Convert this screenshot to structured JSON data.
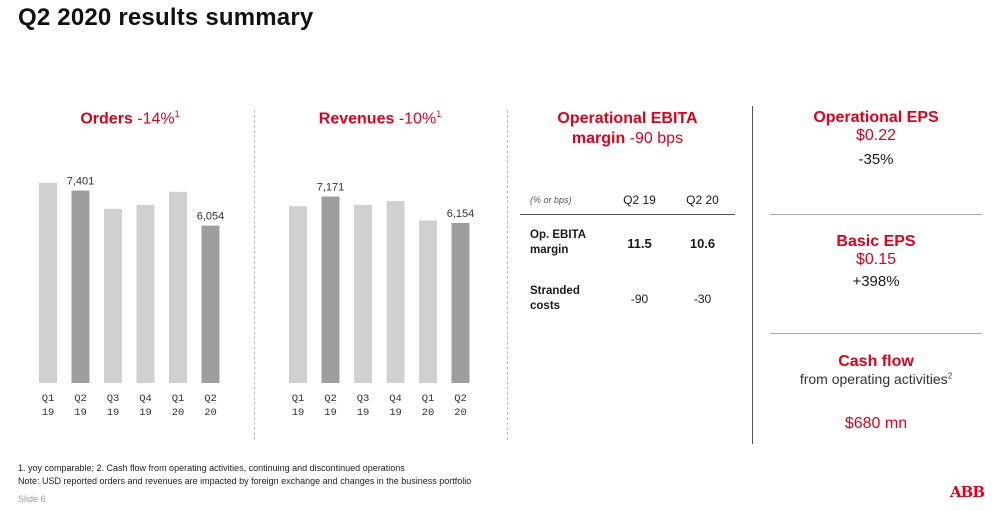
{
  "title": "Q2 2020 results summary",
  "colors": {
    "accent": "#e0001b",
    "bar_light": "#d0d0d0",
    "bar_dark": "#9e9e9e"
  },
  "orders": {
    "name": "Orders",
    "change": "-14%",
    "footnote": "1"
  },
  "revenues": {
    "name": "Revenues",
    "change": "-10%",
    "footnote": "1"
  },
  "chart_data": [
    {
      "type": "bar",
      "title": "Orders -14%",
      "categories": [
        "Q1 19",
        "Q2 19",
        "Q3 19",
        "Q4 19",
        "Q1 20",
        "Q2 20"
      ],
      "tick_labels": [
        [
          "Q1",
          "19"
        ],
        [
          "Q2",
          "19"
        ],
        [
          "Q3",
          "19"
        ],
        [
          "Q4",
          "19"
        ],
        [
          "Q1",
          "20"
        ],
        [
          "Q2",
          "20"
        ]
      ],
      "values": [
        7700,
        7401,
        6700,
        6850,
        7350,
        6054
      ],
      "data_labels": [
        "",
        "7,401",
        "",
        "",
        "",
        "6,054"
      ],
      "highlight": [
        1,
        5
      ],
      "ylim": [
        0,
        8000
      ]
    },
    {
      "type": "bar",
      "title": "Revenues -10%",
      "categories": [
        "Q1 19",
        "Q2 19",
        "Q3 19",
        "Q4 19",
        "Q1 20",
        "Q2 20"
      ],
      "tick_labels": [
        [
          "Q1",
          "19"
        ],
        [
          "Q2",
          "19"
        ],
        [
          "Q3",
          "19"
        ],
        [
          "Q4",
          "19"
        ],
        [
          "Q1",
          "20"
        ],
        [
          "Q2",
          "20"
        ]
      ],
      "values": [
        6800,
        7171,
        6850,
        7000,
        6250,
        6154
      ],
      "data_labels": [
        "",
        "7,171",
        "",
        "",
        "",
        "6,154"
      ],
      "highlight": [
        1,
        5
      ],
      "ylim": [
        0,
        8000
      ]
    }
  ],
  "ebita": {
    "title": "Operational EBITA",
    "title2": "margin",
    "change": "-90 bps",
    "unit": "(% or bps)",
    "col1": "Q2 19",
    "col2": "Q2 20",
    "rows": [
      {
        "label1": "Op. EBITA",
        "label2": "margin",
        "v1": "11.5",
        "v2": "10.6"
      },
      {
        "label1": "Stranded",
        "label2": "costs",
        "v1": "-90",
        "v2": "-30"
      }
    ]
  },
  "eps": {
    "title": "Operational EPS",
    "value": "$0.22",
    "change": "-35%"
  },
  "basic_eps": {
    "title": "Basic EPS",
    "value": "$0.15",
    "change": "+398%"
  },
  "cashflow": {
    "title": "Cash flow",
    "subtitle": "from operating activities",
    "footnote": "2",
    "value": "$680 mn"
  },
  "footnotes": {
    "line1": "1. yoy comparable; 2. Cash flow from operating activities, continuing and discontinued operations",
    "line2": "Note: USD reported orders and revenues are impacted by foreign exchange and changes in the business portfolio"
  },
  "slide": "Slide 6",
  "logo": "ABB"
}
